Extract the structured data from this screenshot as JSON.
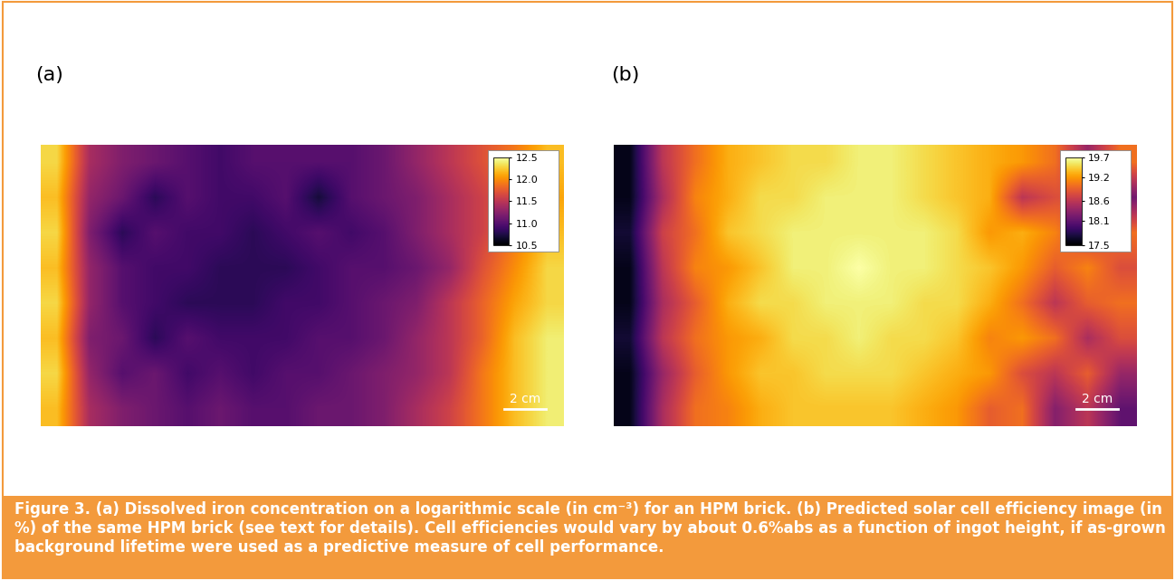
{
  "caption": "Figure 3. (a) Dissolved iron concentration on a logarithmic scale (in cm⁻³) for an HPM brick. (b) Predicted solar cell efficiency image (in %) of the same HPM brick (see text for details). Cell efficiencies would vary by about 0.6%abs as a function of ingot height, if as-grown background lifetime were used as a predictive measure of cell performance.",
  "chart_data": [
    {
      "type": "heatmap",
      "title": "(a)",
      "tick_labels": false,
      "scale_bar": "2 cm",
      "colorbar_range": [
        10.5,
        12.5
      ],
      "colorbar_ticks": [
        10.5,
        {
          "value": 11,
          "label": "11.0"
        },
        11.5,
        {
          "value": 12,
          "label": "12.0"
        },
        12.5
      ],
      "cells": [
        [
          12.3,
          11.4,
          11.2,
          11.1,
          11.0,
          10.9,
          11.0,
          11.0,
          11.0,
          11.0,
          11.1,
          11.3,
          11.5,
          11.7,
          11.9,
          12.2
        ],
        [
          12.2,
          11.3,
          11.1,
          10.8,
          11.0,
          10.9,
          10.9,
          11.0,
          10.7,
          11.0,
          11.1,
          11.2,
          11.4,
          11.6,
          11.8,
          12.1
        ],
        [
          12.3,
          11.2,
          10.8,
          11.0,
          10.9,
          10.9,
          10.8,
          10.9,
          11.0,
          10.9,
          11.0,
          11.2,
          11.4,
          11.6,
          11.9,
          12.2
        ],
        [
          12.2,
          11.3,
          11.0,
          10.9,
          10.9,
          10.8,
          10.8,
          10.8,
          10.9,
          11.0,
          11.0,
          11.1,
          11.3,
          11.7,
          12.0,
          12.3
        ],
        [
          12.3,
          11.3,
          11.0,
          10.9,
          10.8,
          10.8,
          10.8,
          10.9,
          10.9,
          11.0,
          11.1,
          11.2,
          11.5,
          11.8,
          12.1,
          12.3
        ],
        [
          12.2,
          11.2,
          11.1,
          10.8,
          11.0,
          10.9,
          10.9,
          10.9,
          11.0,
          11.0,
          11.1,
          11.3,
          11.5,
          11.8,
          12.2,
          12.4
        ],
        [
          12.3,
          11.3,
          11.0,
          11.1,
          10.9,
          11.0,
          10.9,
          11.0,
          11.0,
          11.1,
          11.2,
          11.3,
          11.5,
          11.9,
          12.2,
          12.4
        ],
        [
          12.2,
          11.4,
          11.2,
          11.1,
          11.0,
          11.1,
          11.0,
          11.0,
          11.1,
          11.1,
          11.2,
          11.4,
          11.6,
          11.9,
          12.2,
          12.4
        ]
      ]
    },
    {
      "type": "heatmap",
      "title": "(b)",
      "tick_labels": false,
      "scale_bar": "2 cm",
      "colorbar_range": [
        17.5,
        19.7
      ],
      "colorbar_ticks": [
        17.5,
        18.1,
        18.6,
        19.2,
        19.7
      ],
      "cells": [
        [
          17.6,
          18.6,
          19.0,
          19.3,
          19.4,
          19.5,
          19.5,
          19.6,
          19.6,
          19.5,
          19.4,
          19.3,
          19.2,
          19.0,
          18.4,
          19.0
        ],
        [
          17.6,
          18.5,
          19.1,
          19.3,
          19.5,
          19.5,
          19.6,
          19.6,
          19.6,
          19.5,
          19.4,
          19.3,
          18.6,
          18.8,
          18.9,
          18.2
        ],
        [
          17.7,
          18.7,
          19.0,
          19.4,
          19.5,
          19.6,
          19.6,
          19.6,
          19.6,
          19.6,
          19.5,
          19.2,
          19.3,
          19.1,
          18.7,
          19.0
        ],
        [
          17.6,
          18.6,
          19.1,
          19.2,
          19.4,
          19.6,
          19.6,
          19.7,
          19.6,
          19.6,
          19.5,
          19.4,
          19.2,
          18.9,
          19.1,
          18.8
        ],
        [
          17.6,
          18.5,
          18.9,
          19.3,
          19.5,
          19.5,
          19.6,
          19.6,
          19.6,
          19.5,
          19.5,
          19.3,
          19.0,
          18.6,
          18.9,
          19.0
        ],
        [
          17.7,
          18.6,
          19.0,
          19.2,
          19.3,
          19.5,
          19.5,
          19.6,
          19.5,
          19.5,
          19.4,
          19.1,
          19.2,
          19.0,
          18.5,
          18.8
        ],
        [
          17.6,
          18.4,
          18.9,
          19.2,
          19.4,
          19.4,
          19.5,
          19.5,
          19.5,
          19.4,
          19.3,
          19.2,
          18.8,
          18.6,
          18.9,
          18.4
        ],
        [
          17.6,
          18.5,
          19.0,
          19.1,
          19.3,
          19.4,
          19.4,
          19.4,
          19.4,
          19.3,
          19.2,
          18.9,
          19.0,
          18.3,
          18.6,
          18.1
        ]
      ]
    }
  ]
}
